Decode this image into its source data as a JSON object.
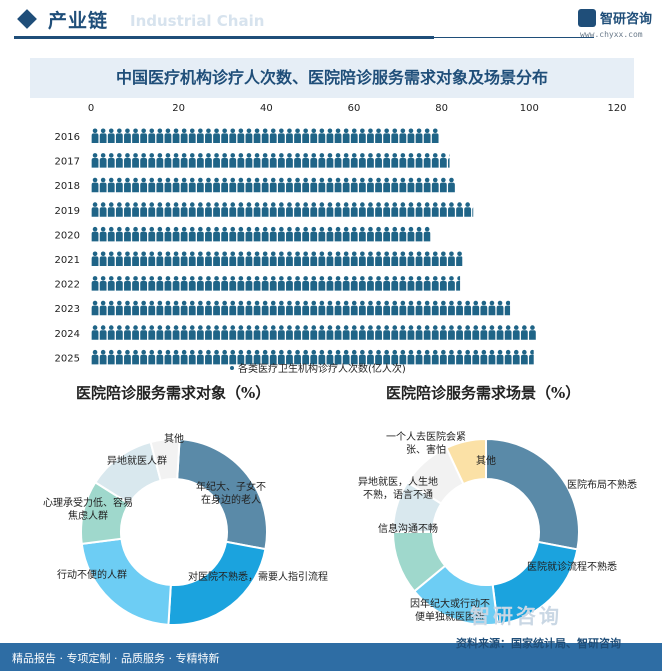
{
  "header": {
    "title": "产业链",
    "ghost_text": "Industrial Chain",
    "logo_name": "智研咨询",
    "logo_url": "www.chyxx.com"
  },
  "chart_data": [
    {
      "type": "bar",
      "title": "中国医疗机构诊疗人次数、医院陪诊服务需求对象及场景分布",
      "categories": [
        "2016",
        "2017",
        "2018",
        "2019",
        "2020",
        "2021",
        "2022",
        "2023",
        "2024",
        "2025"
      ],
      "series": [
        {
          "name": "各类医疗卫生机构诊疗人次数(亿人次)",
          "values": [
            79.3,
            81.8,
            83.1,
            87.2,
            77.4,
            84.7,
            84.2,
            95.6,
            101.5,
            101.0
          ]
        }
      ],
      "xlim": [
        0,
        120
      ],
      "x_ticks": [
        0,
        20,
        40,
        60,
        80,
        100,
        120
      ],
      "orientation": "horizontal",
      "mark": "person-icon pictogram",
      "legend_position": "bottom",
      "color": "#1f6487"
    },
    {
      "type": "pie",
      "title": "医院陪诊服务需求对象（%）",
      "hole": true,
      "labels": [
        "年纪大、子女不在身边的老人",
        "对医院不熟悉，需要人指引流程",
        "行动不便的人群",
        "心理承受力低、容易焦虑人群",
        "异地就医人群",
        "其他"
      ],
      "values": [
        27,
        23,
        22,
        11,
        12,
        5
      ],
      "colors": [
        "#5a8aa8",
        "#1ba3de",
        "#6dcdf4",
        "#9fd8cc",
        "#d9e8ee",
        "#f2f2f2"
      ]
    },
    {
      "type": "pie",
      "title": "医院陪诊服务需求场景（%）",
      "hole": true,
      "labels": [
        "医院布局不熟悉",
        "医院就诊流程不熟悉",
        "因年纪大或行动不便单独就医困难",
        "信息沟通不畅",
        "异地就医，人生地不熟，语言不通",
        "一个人去医院会紧张、害怕",
        "其他"
      ],
      "values": [
        28,
        20,
        16,
        11,
        9,
        9,
        7
      ],
      "colors": [
        "#5a8aa8",
        "#1ba3de",
        "#6dcdf4",
        "#9fd8cc",
        "#d9e8ee",
        "#f2f2f2",
        "#fbe1a6"
      ]
    }
  ],
  "footer": {
    "left_text": "精品报告 · 专项定制 · 品质服务 · 专精特新",
    "source_text": "资料来源：国家统计局、智研咨询",
    "watermark": "智研咨询"
  }
}
